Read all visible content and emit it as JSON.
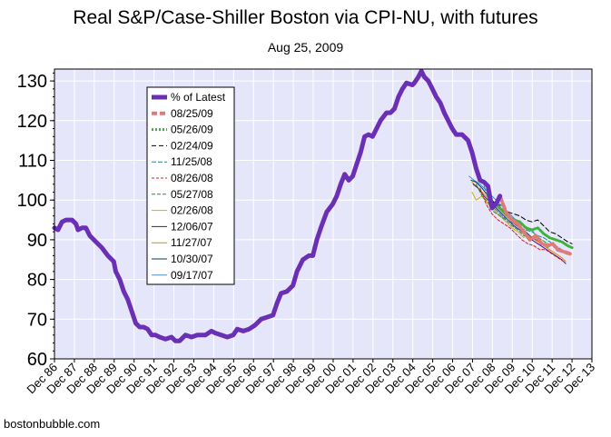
{
  "chart_data": {
    "type": "line",
    "title": "Real S&P/Case-Shiller Boston via CPI-NU, with futures",
    "subtitle": "Aug 25, 2009",
    "credit": "bostonbubble.com",
    "xlim": [
      1986.92,
      2013.92
    ],
    "ylim": [
      60,
      133
    ],
    "yticks": [
      60,
      70,
      80,
      90,
      100,
      110,
      120,
      130
    ],
    "xticks": [
      {
        "label": "Dec 86",
        "x": 1986.92
      },
      {
        "label": "Dec 87",
        "x": 1987.92
      },
      {
        "label": "Dec 88",
        "x": 1988.92
      },
      {
        "label": "Dec 89",
        "x": 1989.92
      },
      {
        "label": "Dec 90",
        "x": 1990.92
      },
      {
        "label": "Dec 91",
        "x": 1991.92
      },
      {
        "label": "Dec 92",
        "x": 1992.92
      },
      {
        "label": "Dec 93",
        "x": 1993.92
      },
      {
        "label": "Dec 94",
        "x": 1994.92
      },
      {
        "label": "Dec 95",
        "x": 1995.92
      },
      {
        "label": "Dec 96",
        "x": 1996.92
      },
      {
        "label": "Dec 97",
        "x": 1997.92
      },
      {
        "label": "Dec 98",
        "x": 1998.92
      },
      {
        "label": "Dec 99",
        "x": 1999.92
      },
      {
        "label": "Dec 00",
        "x": 2000.92
      },
      {
        "label": "Dec 01",
        "x": 2001.92
      },
      {
        "label": "Dec 02",
        "x": 2002.92
      },
      {
        "label": "Dec 03",
        "x": 2003.92
      },
      {
        "label": "Dec 04",
        "x": 2004.92
      },
      {
        "label": "Dec 05",
        "x": 2005.92
      },
      {
        "label": "Dec 06",
        "x": 2006.92
      },
      {
        "label": "Dec 07",
        "x": 2007.92
      },
      {
        "label": "Dec 08",
        "x": 2008.92
      },
      {
        "label": "Dec 09",
        "x": 2009.92
      },
      {
        "label": "Dec 10",
        "x": 2010.92
      },
      {
        "label": "Dec 11",
        "x": 2011.92
      },
      {
        "label": "Dec 12",
        "x": 2012.92
      },
      {
        "label": "Dec 13",
        "x": 2013.92
      }
    ],
    "grid": true,
    "legend_position": "top-left",
    "series": [
      {
        "name": "% of Latest",
        "color": "#6a2fb5",
        "dash": "",
        "width": 5,
        "points": [
          [
            1986.92,
            93
          ],
          [
            1987.1,
            92.5
          ],
          [
            1987.3,
            94.5
          ],
          [
            1987.5,
            95
          ],
          [
            1987.8,
            95
          ],
          [
            1988.0,
            94
          ],
          [
            1988.1,
            92.5
          ],
          [
            1988.3,
            93
          ],
          [
            1988.5,
            93
          ],
          [
            1988.7,
            91
          ],
          [
            1989.0,
            89.5
          ],
          [
            1989.3,
            88
          ],
          [
            1989.6,
            86
          ],
          [
            1989.9,
            84.5
          ],
          [
            1990.0,
            82
          ],
          [
            1990.2,
            80
          ],
          [
            1990.4,
            77
          ],
          [
            1990.6,
            75
          ],
          [
            1990.8,
            72
          ],
          [
            1991.0,
            69
          ],
          [
            1991.2,
            68
          ],
          [
            1991.4,
            68
          ],
          [
            1991.6,
            67.5
          ],
          [
            1991.8,
            66
          ],
          [
            1992.0,
            66
          ],
          [
            1992.2,
            65.5
          ],
          [
            1992.5,
            65
          ],
          [
            1992.8,
            65.5
          ],
          [
            1993.0,
            64.5
          ],
          [
            1993.2,
            64.5
          ],
          [
            1993.5,
            66
          ],
          [
            1993.8,
            65.5
          ],
          [
            1994.1,
            66
          ],
          [
            1994.5,
            66
          ],
          [
            1994.8,
            67
          ],
          [
            1995.0,
            66.5
          ],
          [
            1995.3,
            66
          ],
          [
            1995.6,
            65.5
          ],
          [
            1995.9,
            66
          ],
          [
            1996.1,
            67.5
          ],
          [
            1996.4,
            67
          ],
          [
            1996.7,
            67.5
          ],
          [
            1997.0,
            68.5
          ],
          [
            1997.3,
            70
          ],
          [
            1997.6,
            70.5
          ],
          [
            1997.9,
            71
          ],
          [
            1998.1,
            74
          ],
          [
            1998.3,
            76.5
          ],
          [
            1998.6,
            77
          ],
          [
            1998.9,
            78.5
          ],
          [
            1999.1,
            82
          ],
          [
            1999.4,
            85
          ],
          [
            1999.7,
            86
          ],
          [
            1999.9,
            86
          ],
          [
            2000.1,
            90
          ],
          [
            2000.3,
            93
          ],
          [
            2000.6,
            97
          ],
          [
            2000.9,
            99
          ],
          [
            2001.1,
            101
          ],
          [
            2001.3,
            104
          ],
          [
            2001.5,
            106.5
          ],
          [
            2001.7,
            105
          ],
          [
            2001.9,
            106
          ],
          [
            2002.1,
            109
          ],
          [
            2002.3,
            112
          ],
          [
            2002.5,
            116
          ],
          [
            2002.7,
            116.5
          ],
          [
            2002.9,
            116
          ],
          [
            2003.1,
            118
          ],
          [
            2003.3,
            120
          ],
          [
            2003.6,
            122
          ],
          [
            2003.8,
            122
          ],
          [
            2004.0,
            123
          ],
          [
            2004.2,
            126
          ],
          [
            2004.4,
            128
          ],
          [
            2004.6,
            129.5
          ],
          [
            2004.9,
            129
          ],
          [
            2005.0,
            129.5
          ],
          [
            2005.2,
            131
          ],
          [
            2005.35,
            132.5
          ],
          [
            2005.5,
            131
          ],
          [
            2005.7,
            130
          ],
          [
            2005.9,
            128
          ],
          [
            2006.1,
            126
          ],
          [
            2006.3,
            124.5
          ],
          [
            2006.5,
            122
          ],
          [
            2006.7,
            120
          ],
          [
            2006.9,
            118
          ],
          [
            2007.1,
            116.5
          ],
          [
            2007.4,
            116.5
          ],
          [
            2007.7,
            115
          ],
          [
            2007.9,
            112
          ],
          [
            2008.1,
            108
          ],
          [
            2008.3,
            105
          ],
          [
            2008.5,
            104.5
          ],
          [
            2008.7,
            103.5
          ],
          [
            2008.9,
            98
          ],
          [
            2009.1,
            99
          ],
          [
            2009.3,
            101
          ]
        ]
      },
      {
        "name": "08/25/09",
        "color": "#e07a7a",
        "dash": "6,3",
        "width": 4,
        "points": [
          [
            2009.3,
            101
          ],
          [
            2009.6,
            97
          ],
          [
            2009.9,
            95
          ],
          [
            2010.2,
            94
          ],
          [
            2010.5,
            92
          ],
          [
            2010.8,
            90
          ],
          [
            2011.1,
            91
          ],
          [
            2011.4,
            89
          ],
          [
            2011.7,
            88.5
          ],
          [
            2011.95,
            89
          ],
          [
            2012.2,
            87.5
          ],
          [
            2012.5,
            87
          ],
          [
            2012.8,
            86.5
          ],
          [
            2012.92,
            86.3
          ]
        ]
      },
      {
        "name": "05/26/09",
        "color": "#3cb33c",
        "dash": "2,2",
        "width": 3,
        "points": [
          [
            2009.1,
            99
          ],
          [
            2009.4,
            97.5
          ],
          [
            2009.7,
            96
          ],
          [
            2010.0,
            95
          ],
          [
            2010.3,
            94.5
          ],
          [
            2010.6,
            93
          ],
          [
            2010.9,
            92.5
          ],
          [
            2011.2,
            93
          ],
          [
            2011.5,
            91.5
          ],
          [
            2011.8,
            90.5
          ],
          [
            2012.1,
            90
          ],
          [
            2012.4,
            89.5
          ],
          [
            2012.7,
            88.5
          ],
          [
            2012.92,
            88
          ]
        ]
      },
      {
        "name": "02/24/09",
        "color": "#000000",
        "dash": "5,3",
        "width": 1,
        "points": [
          [
            2008.8,
            100
          ],
          [
            2009.1,
            99
          ],
          [
            2009.4,
            98.5
          ],
          [
            2009.7,
            97
          ],
          [
            2010.0,
            96.5
          ],
          [
            2010.3,
            96
          ],
          [
            2010.6,
            95
          ],
          [
            2010.9,
            94.5
          ],
          [
            2011.2,
            95
          ],
          [
            2011.5,
            93.5
          ],
          [
            2011.8,
            92
          ],
          [
            2012.1,
            91.5
          ],
          [
            2012.4,
            90.5
          ],
          [
            2012.7,
            89.5
          ],
          [
            2012.92,
            89
          ]
        ]
      },
      {
        "name": "11/25/08",
        "color": "#1d8a8a",
        "dash": "5,2",
        "width": 1,
        "points": [
          [
            2008.5,
            103.5
          ],
          [
            2008.8,
            99
          ],
          [
            2009.1,
            97.5
          ],
          [
            2009.4,
            96
          ],
          [
            2009.7,
            95
          ],
          [
            2010.0,
            94
          ],
          [
            2010.3,
            93
          ],
          [
            2010.6,
            92.5
          ],
          [
            2010.9,
            92
          ],
          [
            2011.2,
            91
          ],
          [
            2011.5,
            90.5
          ],
          [
            2011.8,
            89.5
          ],
          [
            2012.1,
            88.5
          ],
          [
            2012.4,
            87.5
          ],
          [
            2012.7,
            86.5
          ]
        ]
      },
      {
        "name": "08/26/08",
        "color": "#cc2222",
        "dash": "3,2",
        "width": 1,
        "points": [
          [
            2008.3,
            103
          ],
          [
            2008.6,
            99
          ],
          [
            2008.9,
            96.5
          ],
          [
            2009.2,
            95
          ],
          [
            2009.5,
            94
          ],
          [
            2009.8,
            93
          ],
          [
            2010.1,
            91.5
          ],
          [
            2010.4,
            90
          ],
          [
            2010.7,
            89
          ],
          [
            2011.0,
            88.5
          ],
          [
            2011.3,
            87.5
          ],
          [
            2011.6,
            87.5
          ],
          [
            2011.9,
            86.5
          ],
          [
            2012.2,
            85.5
          ],
          [
            2012.5,
            84.5
          ]
        ]
      },
      {
        "name": "05/27/08",
        "color": "#2a8a2a",
        "dash": "4,2",
        "width": 1,
        "points": [
          [
            2008.1,
            104
          ],
          [
            2008.4,
            101
          ],
          [
            2008.7,
            99.5
          ],
          [
            2009.0,
            97
          ],
          [
            2009.3,
            96
          ],
          [
            2009.6,
            95
          ],
          [
            2009.9,
            93.5
          ],
          [
            2010.2,
            92.5
          ],
          [
            2010.5,
            91
          ],
          [
            2010.8,
            90.5
          ],
          [
            2011.1,
            91
          ],
          [
            2011.4,
            90
          ],
          [
            2011.7,
            89
          ]
        ]
      },
      {
        "name": "02/26/08",
        "color": "#c8b400",
        "dash": "",
        "width": 1,
        "points": [
          [
            2007.9,
            102
          ],
          [
            2008.1,
            100
          ],
          [
            2008.4,
            101
          ],
          [
            2008.7,
            99
          ],
          [
            2009.0,
            97.5
          ],
          [
            2009.3,
            96
          ],
          [
            2009.6,
            94.5
          ],
          [
            2009.9,
            93
          ],
          [
            2010.2,
            92
          ],
          [
            2010.5,
            90.5
          ]
        ]
      },
      {
        "name": "12/06/07",
        "color": "#3a1a8a",
        "dash": "",
        "width": 1,
        "points": [
          [
            2007.95,
            104
          ],
          [
            2008.2,
            103
          ],
          [
            2008.5,
            101
          ],
          [
            2008.8,
            99.5
          ],
          [
            2009.1,
            98
          ],
          [
            2009.4,
            96.5
          ],
          [
            2009.7,
            95
          ],
          [
            2010.0,
            93.5
          ],
          [
            2010.3,
            92.5
          ],
          [
            2010.6,
            91
          ],
          [
            2010.9,
            90
          ],
          [
            2011.2,
            89
          ],
          [
            2011.5,
            88
          ],
          [
            2011.8,
            87
          ],
          [
            2012.1,
            86
          ],
          [
            2012.4,
            85
          ],
          [
            2012.6,
            84
          ]
        ]
      },
      {
        "name": "11/27/07",
        "color": "#e08a00",
        "dash": "",
        "width": 1,
        "points": [
          [
            2007.9,
            104.5
          ],
          [
            2008.2,
            103
          ],
          [
            2008.5,
            101.5
          ],
          [
            2008.8,
            100
          ],
          [
            2009.1,
            98.5
          ],
          [
            2009.4,
            97
          ],
          [
            2009.7,
            95.5
          ],
          [
            2010.0,
            94
          ],
          [
            2010.3,
            93
          ],
          [
            2010.6,
            91.5
          ],
          [
            2010.9,
            90.5
          ],
          [
            2011.2,
            89.5
          ],
          [
            2011.5,
            88.5
          ],
          [
            2011.8,
            87.5
          ],
          [
            2012.1,
            86.5
          ],
          [
            2012.4,
            85.5
          ],
          [
            2012.6,
            84.5
          ]
        ]
      },
      {
        "name": "10/30/07",
        "color": "#003a6a",
        "dash": "",
        "width": 1,
        "points": [
          [
            2007.85,
            105
          ],
          [
            2008.1,
            104.5
          ],
          [
            2008.4,
            103
          ],
          [
            2008.7,
            101
          ],
          [
            2009.0,
            99.5
          ],
          [
            2009.3,
            98
          ],
          [
            2009.6,
            96.5
          ],
          [
            2009.9,
            95
          ],
          [
            2010.2,
            93.5
          ],
          [
            2010.5,
            92.5
          ],
          [
            2010.8,
            91
          ],
          [
            2011.1,
            90
          ],
          [
            2011.4,
            89
          ],
          [
            2011.7,
            88
          ]
        ]
      },
      {
        "name": "09/17/07",
        "color": "#4a8ad0",
        "dash": "",
        "width": 1,
        "points": [
          [
            2007.75,
            106
          ],
          [
            2008.0,
            105
          ],
          [
            2008.3,
            104
          ],
          [
            2008.6,
            102.5
          ],
          [
            2008.9,
            101
          ],
          [
            2009.2,
            99.5
          ],
          [
            2009.5,
            98
          ],
          [
            2009.8,
            96.5
          ],
          [
            2010.1,
            95
          ],
          [
            2010.4,
            94
          ],
          [
            2010.7,
            93
          ],
          [
            2011.0,
            92
          ]
        ]
      }
    ]
  }
}
